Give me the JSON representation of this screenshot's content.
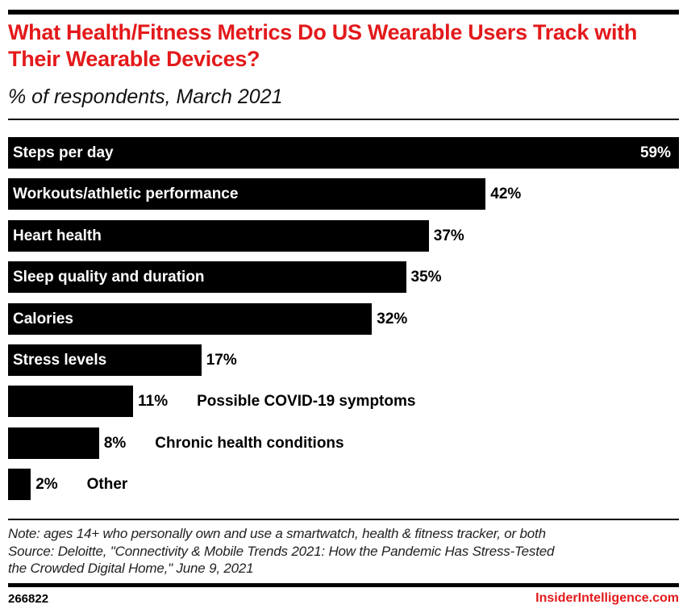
{
  "header": {
    "title": "What Health/Fitness Metrics Do US Wearable Users Track with Their Wearable Devices?",
    "subtitle": "% of respondents, March 2021"
  },
  "chart_data": {
    "type": "bar",
    "orientation": "horizontal",
    "title": "What Health/Fitness Metrics Do US Wearable Users Track with Their Wearable Devices?",
    "subtitle": "% of respondents, March 2021",
    "xlabel": "",
    "ylabel": "",
    "unit": "%",
    "xlim": [
      0,
      59
    ],
    "grid": false,
    "categories": [
      "Steps per day",
      "Workouts/athletic performance",
      "Heart health",
      "Sleep quality and duration",
      "Calories",
      "Stress levels",
      "Possible COVID-19 symptoms",
      "Chronic health conditions",
      "Other"
    ],
    "values": [
      59,
      42,
      37,
      35,
      32,
      17,
      11,
      8,
      2
    ],
    "value_labels": [
      "59%",
      "42%",
      "37%",
      "35%",
      "32%",
      "17%",
      "11%",
      "8%",
      "2%"
    ]
  },
  "footer": {
    "note": "Note: ages 14+ who personally own and use a smartwatch, health & fitness tracker, or both",
    "source_line1": "Source: Deloitte, \"Connectivity & Mobile Trends 2021: How the Pandemic Has Stress-Tested",
    "source_line2": "the Crowded Digital Home,\" June 9, 2021",
    "chart_id": "266822",
    "brand": "InsiderIntelligence.com"
  },
  "colors": {
    "accent": "#e3191b",
    "bar": "#000000"
  }
}
